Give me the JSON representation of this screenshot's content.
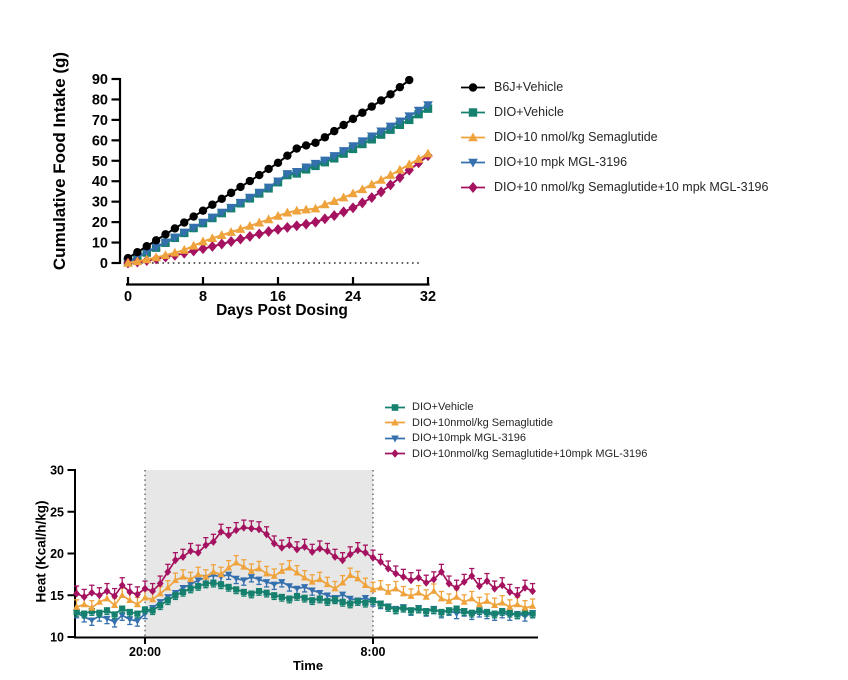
{
  "figure": {
    "background": "#ffffff"
  },
  "chart_data": [
    {
      "id": "cumulative-food-intake",
      "type": "line",
      "title": "",
      "xlabel": "Days Post Dosing",
      "ylabel": "Cumulative Food Intake (g)",
      "xlim": [
        0,
        32
      ],
      "ylim": [
        0,
        90
      ],
      "xticks": [
        0,
        8,
        16,
        24,
        32
      ],
      "yticks": [
        0,
        10,
        20,
        30,
        40,
        50,
        60,
        70,
        80,
        90
      ],
      "baseline": {
        "y": 0,
        "style": "dotted"
      },
      "legend_position": "right",
      "series": [
        {
          "name": "B6J+Vehicle",
          "color": "#000000",
          "marker": "circle",
          "x_start": 0,
          "x_step": 1,
          "values": [
            2.4,
            5.3,
            8.2,
            11.1,
            14.0,
            16.9,
            19.8,
            22.7,
            25.6,
            28.5,
            31.4,
            34.3,
            37.2,
            40.1,
            43.0,
            46.0,
            49.0,
            52.5,
            56.0,
            57.5,
            58.8,
            61.5,
            64.5,
            67.5,
            70.5,
            73.5,
            76.5,
            79.5,
            82.5,
            86.0,
            89.5
          ]
        },
        {
          "name": "DIO+Vehicle",
          "color": "#15806D",
          "marker": "square",
          "x_start": 0,
          "x_step": 1,
          "values": [
            0.5,
            2.8,
            5.1,
            7.5,
            9.9,
            12.3,
            14.7,
            17.1,
            19.5,
            22.0,
            24.4,
            26.8,
            29.2,
            31.6,
            34.0,
            36.5,
            39.5,
            43.0,
            43.8,
            45.8,
            47.5,
            49.3,
            51.2,
            53.5,
            55.8,
            58.2,
            60.5,
            62.8,
            65.2,
            67.6,
            70.0,
            72.8,
            75.5
          ]
        },
        {
          "name": "DIO+10 nmol/kg Semaglutide",
          "color": "#EFA33C",
          "marker": "triangle-up",
          "x_start": 0,
          "x_step": 1,
          "values": [
            0,
            0.8,
            1.7,
            2.7,
            3.8,
            5.0,
            6.4,
            8.4,
            10.5,
            12.1,
            13.6,
            15.1,
            16.6,
            18.1,
            19.7,
            21.3,
            23.0,
            24.6,
            25.6,
            26.1,
            26.6,
            28.6,
            30.2,
            32.0,
            34.0,
            36.0,
            38.4,
            40.6,
            43.0,
            45.6,
            48.2,
            50.8,
            53.5
          ]
        },
        {
          "name": "DIO+10 mpk MGL-3196",
          "color": "#3570AE",
          "marker": "triangle-down",
          "x_start": 0,
          "x_step": 1,
          "values": [
            0.5,
            2.9,
            5.3,
            7.7,
            10.1,
            12.5,
            14.9,
            17.3,
            19.8,
            22.3,
            24.7,
            27.1,
            29.5,
            32.0,
            34.5,
            37.0,
            40.0,
            43.6,
            44.6,
            46.8,
            48.6,
            50.2,
            52.4,
            54.8,
            57.2,
            59.6,
            62.0,
            64.4,
            66.8,
            69.3,
            71.8,
            74.6,
            77.3
          ]
        },
        {
          "name": "DIO+10 nmol/kg Semaglutide+10 mpk MGL-3196",
          "color": "#A5125F",
          "marker": "diamond",
          "x_start": 0,
          "x_step": 1,
          "values": [
            0,
            0.5,
            1.2,
            2.0,
            2.9,
            3.8,
            4.8,
            5.9,
            7.0,
            8.1,
            9.3,
            10.5,
            11.7,
            13.0,
            14.2,
            15.4,
            16.4,
            17.4,
            18.2,
            19.0,
            20.0,
            21.6,
            23.2,
            25.0,
            27.0,
            29.4,
            32.0,
            34.8,
            38.2,
            41.8,
            45.4,
            49.0,
            52.5
          ]
        }
      ]
    },
    {
      "id": "heat",
      "type": "line",
      "title": "",
      "xlabel": "Time",
      "ylabel": "Heat (Kcal/h/kg)",
      "ylim": [
        10,
        30
      ],
      "yticks": [
        10,
        15,
        20,
        25,
        30
      ],
      "xticks": [
        {
          "t": 20,
          "label": "20:00"
        },
        {
          "t": 32,
          "label": "8:00"
        }
      ],
      "dark_phase": {
        "from_t": 20,
        "to_t": 32,
        "fill": "#E7E7E7"
      },
      "t_start": 16.4,
      "t_step": 0.4,
      "legend_position": "top",
      "series": [
        {
          "name": "DIO+Vehicle",
          "color": "#15806D",
          "marker": "square",
          "err": 0.5,
          "err_dir": "down",
          "values": [
            13.0,
            12.8,
            13.1,
            12.9,
            13.2,
            12.7,
            13.4,
            13.0,
            12.8,
            13.3,
            13.2,
            13.8,
            14.4,
            15.0,
            15.4,
            15.8,
            16.1,
            16.4,
            16.5,
            16.3,
            16.0,
            15.7,
            15.4,
            15.2,
            15.5,
            15.3,
            15.0,
            14.8,
            14.6,
            14.9,
            14.7,
            14.4,
            14.6,
            14.3,
            14.5,
            14.2,
            14.0,
            14.3,
            14.1,
            14.4,
            14.0,
            13.6,
            13.3,
            13.5,
            13.2,
            13.4,
            13.1,
            13.3,
            13.0,
            13.2,
            13.4,
            13.1,
            12.9,
            13.2,
            13.0,
            12.8,
            13.1,
            12.9,
            12.7,
            13.0,
            12.8
          ]
        },
        {
          "name": "DIO+10nmol/kg Semaglutide",
          "color": "#EFA33C",
          "marker": "triangle-up",
          "err": 0.85,
          "err_dir": "up",
          "values": [
            13.6,
            13.9,
            13.5,
            14.2,
            14.6,
            13.8,
            15.0,
            14.4,
            13.9,
            14.7,
            14.5,
            15.2,
            15.9,
            16.8,
            17.2,
            16.9,
            17.5,
            17.2,
            17.8,
            17.5,
            18.3,
            18.9,
            18.4,
            17.9,
            18.2,
            17.6,
            17.3,
            17.9,
            18.3,
            17.7,
            17.1,
            16.6,
            16.9,
            16.3,
            15.8,
            16.5,
            17.4,
            17.0,
            16.2,
            15.7,
            15.9,
            15.4,
            15.8,
            15.2,
            14.9,
            15.3,
            14.8,
            15.5,
            14.6,
            14.3,
            14.8,
            14.2,
            14.6,
            13.9,
            14.3,
            13.8,
            14.1,
            13.6,
            13.9,
            13.5,
            13.7
          ]
        },
        {
          "name": "DIO+10mpk MGL-3196",
          "color": "#3570AE",
          "marker": "triangle-down",
          "err": 0.6,
          "err_dir": "down",
          "values": [
            12.9,
            12.4,
            12.0,
            12.5,
            12.2,
            11.8,
            12.6,
            12.1,
            11.9,
            12.8,
            13.5,
            14.2,
            14.8,
            15.3,
            15.9,
            16.3,
            16.8,
            17.1,
            17.4,
            17.2,
            17.5,
            17.0,
            16.8,
            17.2,
            16.9,
            16.6,
            16.3,
            16.6,
            16.1,
            15.8,
            16.0,
            15.6,
            15.3,
            15.0,
            14.7,
            15.1,
            14.6,
            14.4,
            14.7,
            14.3,
            14.0,
            13.7,
            13.4,
            13.6,
            13.2,
            13.5,
            13.1,
            13.4,
            12.9,
            13.2,
            12.8,
            13.1,
            12.7,
            13.0,
            12.8,
            12.6,
            12.9,
            12.6,
            12.8,
            12.5,
            12.9
          ]
        },
        {
          "name": "DIO+10nmol/kg Semaglutide+10mpk MGL-3196",
          "color": "#A5125F",
          "marker": "diamond",
          "err": 0.9,
          "err_dir": "up",
          "values": [
            15.2,
            14.8,
            15.3,
            15.0,
            15.5,
            14.9,
            16.2,
            15.4,
            15.1,
            15.8,
            15.5,
            16.4,
            17.8,
            19.2,
            19.6,
            20.3,
            20.1,
            21.0,
            21.4,
            22.6,
            22.2,
            22.8,
            23.1,
            23.0,
            22.9,
            22.3,
            21.2,
            20.7,
            21.0,
            20.5,
            20.8,
            20.2,
            20.6,
            20.3,
            19.6,
            19.2,
            19.9,
            20.4,
            20.1,
            19.5,
            19.0,
            18.2,
            17.6,
            17.2,
            16.8,
            17.1,
            16.5,
            16.9,
            17.8,
            16.4,
            15.9,
            16.6,
            17.3,
            16.1,
            16.7,
            15.8,
            16.2,
            15.4,
            15.0,
            15.9,
            15.5
          ]
        }
      ]
    }
  ]
}
